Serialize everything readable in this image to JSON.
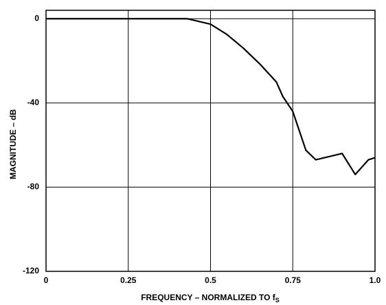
{
  "chart_data": {
    "type": "line",
    "xlabel": "FREQUENCY – NORMALIZED TO f",
    "xlabel_sub": "S",
    "ylabel": "MAGNITUDE – dB",
    "xlim": [
      0,
      1
    ],
    "ylim": [
      -120,
      4
    ],
    "xticks": [
      0,
      0.25,
      0.5,
      0.75,
      {
        "value": 1,
        "label": "1.0"
      }
    ],
    "yticks": [
      0,
      -40,
      -80,
      -120
    ],
    "grid": true,
    "series": [
      {
        "color": "#000000",
        "x": [
          0,
          0.43,
          0.5,
          0.55,
          0.6,
          0.65,
          0.7,
          0.72,
          0.75,
          0.79,
          0.82,
          0.9,
          0.94,
          0.98,
          1.0
        ],
        "values": [
          0,
          0,
          -2.6,
          -7.5,
          -14,
          -21.5,
          -30,
          -37,
          -44,
          -62.5,
          -67,
          -64,
          -74,
          -67,
          -66
        ]
      }
    ]
  }
}
